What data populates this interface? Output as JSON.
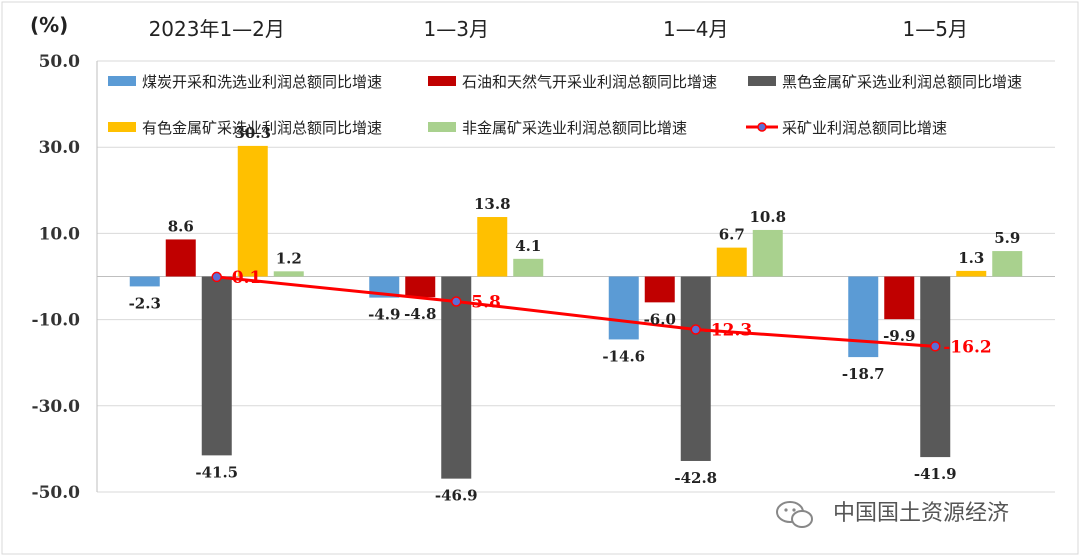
{
  "chart_data": {
    "type": "bar",
    "unit": "(%)",
    "categories": [
      "2023年1—2月",
      "1—3月",
      "1—4月",
      "1—5月"
    ],
    "yticks": [
      "50.0",
      "30.0",
      "10.0",
      "-10.0",
      "-30.0",
      "-50.0"
    ],
    "ylim": [
      -50,
      50
    ],
    "grid": true,
    "legend_position": "top",
    "series": [
      {
        "name": "煤炭开采和洗选业利润总额同比增速",
        "kind": "bar",
        "color": "#5b9bd5",
        "values": [
          -2.3,
          -4.9,
          -14.6,
          -18.7
        ],
        "labels": [
          "-2.3",
          "-4.9",
          "-14.6",
          "-18.7"
        ]
      },
      {
        "name": "石油和天然气开采业利润总额同比增速",
        "kind": "bar",
        "color": "#c00000",
        "values": [
          8.6,
          -4.8,
          -6.0,
          -9.9
        ],
        "labels": [
          "8.6",
          "-4.8",
          "-6.0",
          "-9.9"
        ]
      },
      {
        "name": "黑色金属矿采选业利润总额同比增速",
        "kind": "bar",
        "color": "#595959",
        "values": [
          -41.5,
          -46.9,
          -42.8,
          -41.9
        ],
        "labels": [
          "-41.5",
          "-46.9",
          "-42.8",
          "-41.9"
        ]
      },
      {
        "name": "有色金属矿采选业利润总额同比增速",
        "kind": "bar",
        "color": "#ffc000",
        "values": [
          30.3,
          13.8,
          6.7,
          1.3
        ],
        "labels": [
          "30.3",
          "13.8",
          "6.7",
          "1.3"
        ]
      },
      {
        "name": "非金属矿采选业利润总额同比增速",
        "kind": "bar",
        "color": "#a9d18e",
        "values": [
          1.2,
          4.1,
          10.8,
          5.9
        ],
        "labels": [
          "1.2",
          "4.1",
          "10.8",
          "5.9"
        ]
      },
      {
        "name": "采矿业利润总额同比增速",
        "kind": "line",
        "color": "#ff0000",
        "values": [
          -0.1,
          -5.8,
          -12.3,
          -16.2
        ],
        "labels": [
          "-0.1",
          "-5.8",
          "-12.3",
          "-16.2"
        ]
      }
    ]
  },
  "watermark": {
    "text": "中国国土资源经济",
    "icon": "wechat-icon"
  }
}
